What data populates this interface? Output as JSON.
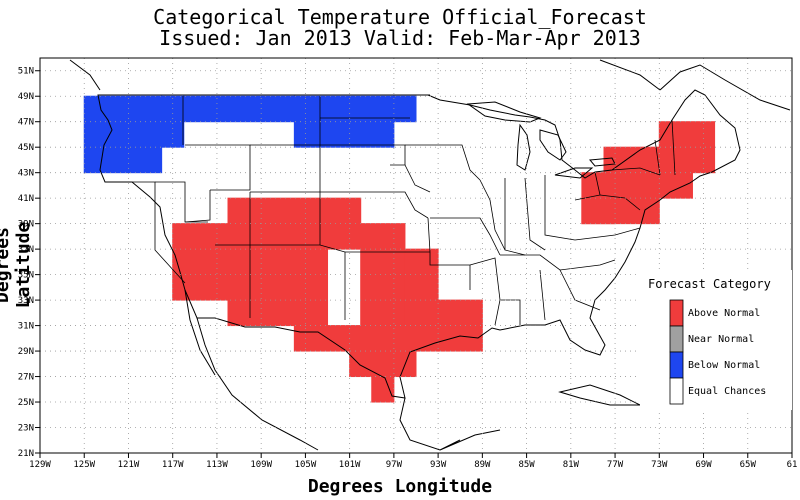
{
  "title_line1": "Categorical Temperature Official_Forecast",
  "title_line2": "Issued: Jan 2013 Valid: Feb-Mar-Apr 2013",
  "ylabel": "Degrees Latitude",
  "xlabel": "Degrees Longitude",
  "lon_ticks": [
    "129W",
    "125W",
    "121W",
    "117W",
    "113W",
    "109W",
    "105W",
    "101W",
    "97W",
    "93W",
    "89W",
    "85W",
    "81W",
    "77W",
    "73W",
    "69W",
    "65W",
    "61"
  ],
  "lat_ticks": [
    "51N",
    "49N",
    "47N",
    "45N",
    "43N",
    "41N",
    "39N",
    "37N",
    "35N",
    "33N",
    "31N",
    "29N",
    "27N",
    "25N",
    "23N",
    "21N"
  ],
  "legend": {
    "title": "Forecast Category",
    "items": [
      {
        "label": "Above Normal",
        "color": "#f03c3c"
      },
      {
        "label": "Near Normal",
        "color": "#a0a0a0"
      },
      {
        "label": "Below Normal",
        "color": "#1e46f0"
      },
      {
        "label": "Equal Chances",
        "color": "#ffffff"
      }
    ]
  },
  "map": {
    "lon_range": [
      -129,
      -61
    ],
    "lat_range": [
      21,
      52
    ],
    "above_normal_cells": [
      [
        -117,
        39,
        -112,
        33
      ],
      [
        -112,
        41,
        -103,
        31
      ],
      [
        -103,
        41,
        -100,
        37
      ],
      [
        -100,
        39,
        -96,
        31
      ],
      [
        -96,
        37,
        -93,
        29
      ],
      [
        -93,
        33,
        -91,
        29
      ],
      [
        -106,
        31,
        -96,
        29
      ],
      [
        -101,
        29,
        -95,
        27
      ],
      [
        -99,
        27,
        -97,
        25
      ],
      [
        -91,
        33,
        -89,
        29
      ],
      [
        -80,
        43,
        -73,
        39
      ],
      [
        -78,
        45,
        -70,
        41
      ],
      [
        -73,
        47,
        -68,
        43
      ],
      [
        -80,
        41,
        -77,
        39
      ]
    ],
    "below_normal_cells": [
      [
        -125,
        49,
        -118,
        43
      ],
      [
        -118,
        49,
        -116,
        45
      ],
      [
        -116,
        49,
        -106,
        47
      ],
      [
        -106,
        49,
        -97,
        45
      ],
      [
        -97,
        49,
        -95,
        47
      ]
    ]
  }
}
